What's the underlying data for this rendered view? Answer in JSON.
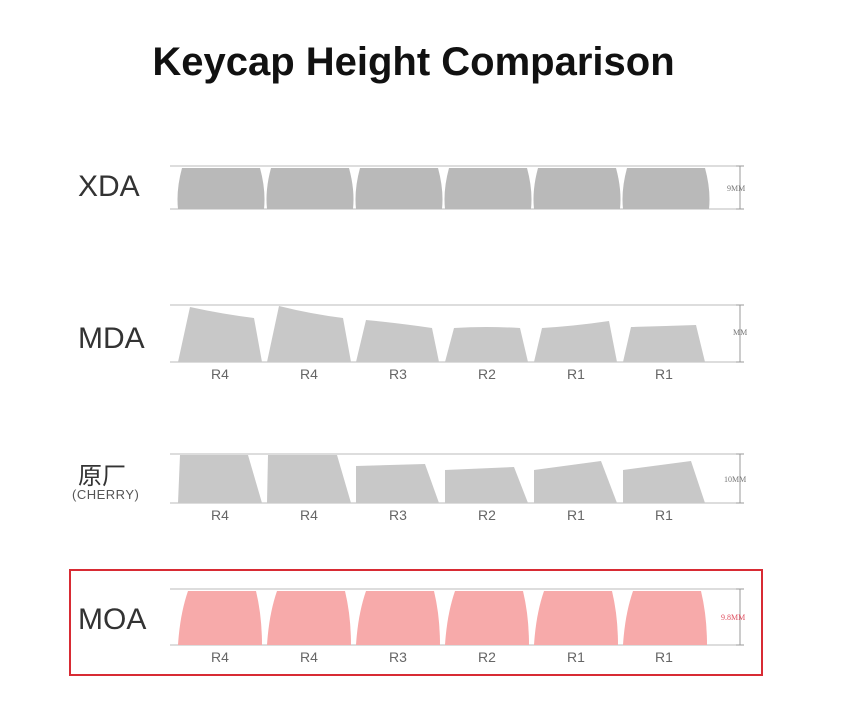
{
  "title": "Keycap Height Comparison",
  "colors": {
    "gray_cap": "#b9b9b9",
    "light_gray_cap": "#c8c8c8",
    "moa_cap": "#f7aaaa",
    "highlight": "#d82b34"
  },
  "profiles": [
    {
      "name": "XDA",
      "subname": "",
      "height_label": "9MM",
      "rows": [
        "",
        "",
        "",
        "",
        "",
        ""
      ]
    },
    {
      "name": "MDA",
      "subname": "",
      "height_label": "MM",
      "rows": [
        "R4",
        "R4",
        "R3",
        "R2",
        "R1",
        "R1"
      ]
    },
    {
      "name": "原厂",
      "subname": "(CHERRY)",
      "height_label": "10MM",
      "rows": [
        "R4",
        "R4",
        "R3",
        "R2",
        "R1",
        "R1"
      ]
    },
    {
      "name": "MOA",
      "subname": "",
      "height_label": "9.8MM",
      "rows": [
        "R4",
        "R4",
        "R3",
        "R2",
        "R1",
        "R1"
      ]
    }
  ]
}
